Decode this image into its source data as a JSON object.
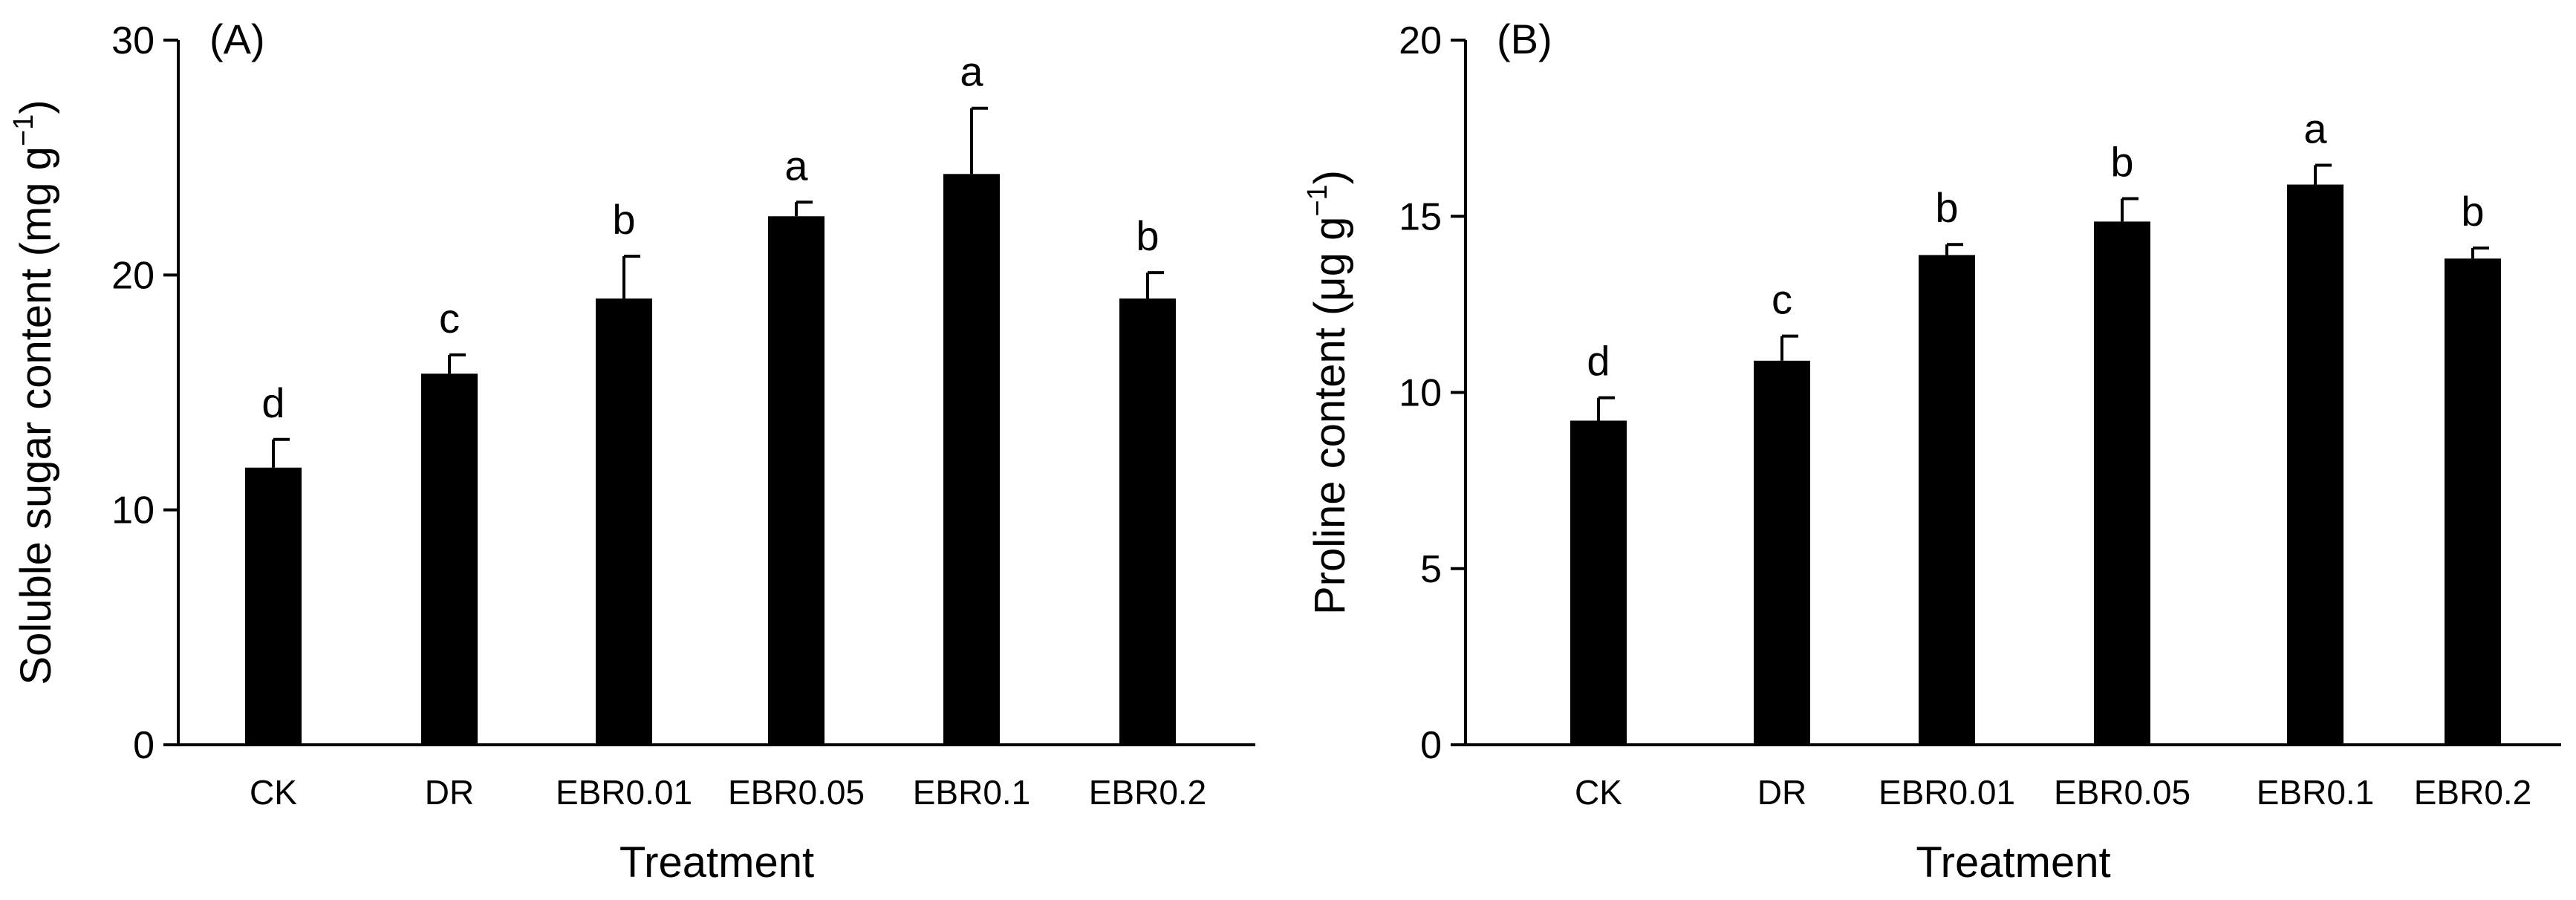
{
  "chart_data": [
    {
      "type": "bar",
      "panel_label": "(A)",
      "categories": [
        "CK",
        "DR",
        "EBR0.01",
        "EBR0.05",
        "EBR0.1",
        "EBR0.2"
      ],
      "values": [
        11.8,
        15.8,
        19.0,
        22.5,
        24.3,
        19.0
      ],
      "errors": [
        1.2,
        0.8,
        1.8,
        0.6,
        2.8,
        1.1
      ],
      "letters": [
        "d",
        "c",
        "b",
        "a",
        "a",
        "b"
      ],
      "xlabel": "Treatment",
      "ylabel": "Soluble sugar content (mg g",
      "ylabel_sup": "−1",
      "ylabel_end": ")",
      "ylim": [
        0,
        30
      ],
      "yticks": [
        "0",
        "10",
        "20",
        "30"
      ],
      "grid": false,
      "bar_color": "#000000"
    },
    {
      "type": "bar",
      "panel_label": "(B)",
      "categories": [
        "CK",
        "DR",
        "EBR0.01",
        "EBR0.05",
        "EBR0.1",
        "EBR0.2"
      ],
      "values": [
        9.2,
        10.9,
        13.9,
        14.85,
        15.9,
        13.8
      ],
      "errors": [
        0.65,
        0.7,
        0.3,
        0.65,
        0.55,
        0.3
      ],
      "letters": [
        "d",
        "c",
        "b",
        "b",
        "a",
        "b"
      ],
      "xlabel": "Treatment",
      "ylabel": "Proline content (μg g",
      "ylabel_sup": "−1",
      "ylabel_end": ")",
      "ylim": [
        0,
        20
      ],
      "yticks": [
        "0",
        "5",
        "10",
        "15",
        "20"
      ],
      "grid": false,
      "bar_color": "#000000"
    }
  ]
}
